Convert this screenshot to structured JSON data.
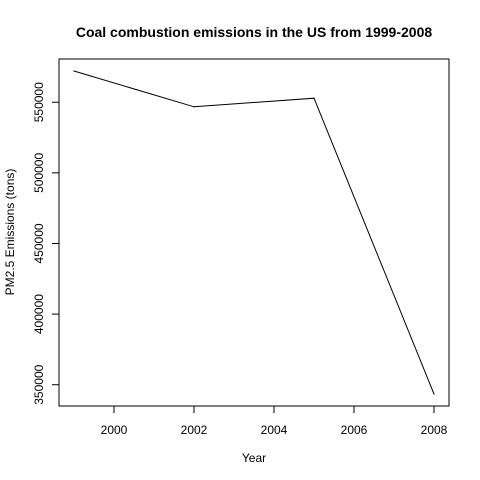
{
  "chart_data": {
    "type": "line",
    "title": "Coal combustion emissions in the US from 1999-2008",
    "xlabel": "Year",
    "ylabel": "PM2.5 Emissions (tons)",
    "x": [
      1999,
      2002,
      2005,
      2008
    ],
    "series": [
      {
        "values": [
          572126,
          546789,
          552881,
          343432
        ]
      }
    ],
    "xlim": [
      1999,
      2008
    ],
    "ylim": [
      343432,
      572126
    ],
    "xticks": [
      2000,
      2002,
      2004,
      2006,
      2008
    ],
    "yticks": [
      350000,
      400000,
      450000,
      500000,
      550000
    ],
    "xtick_labels": [
      "2000",
      "2002",
      "2004",
      "2006",
      "2008"
    ],
    "ytick_labels": [
      "350000",
      "400000",
      "450000",
      "500000",
      "550000"
    ],
    "grid": false,
    "line_color": "#000000"
  }
}
